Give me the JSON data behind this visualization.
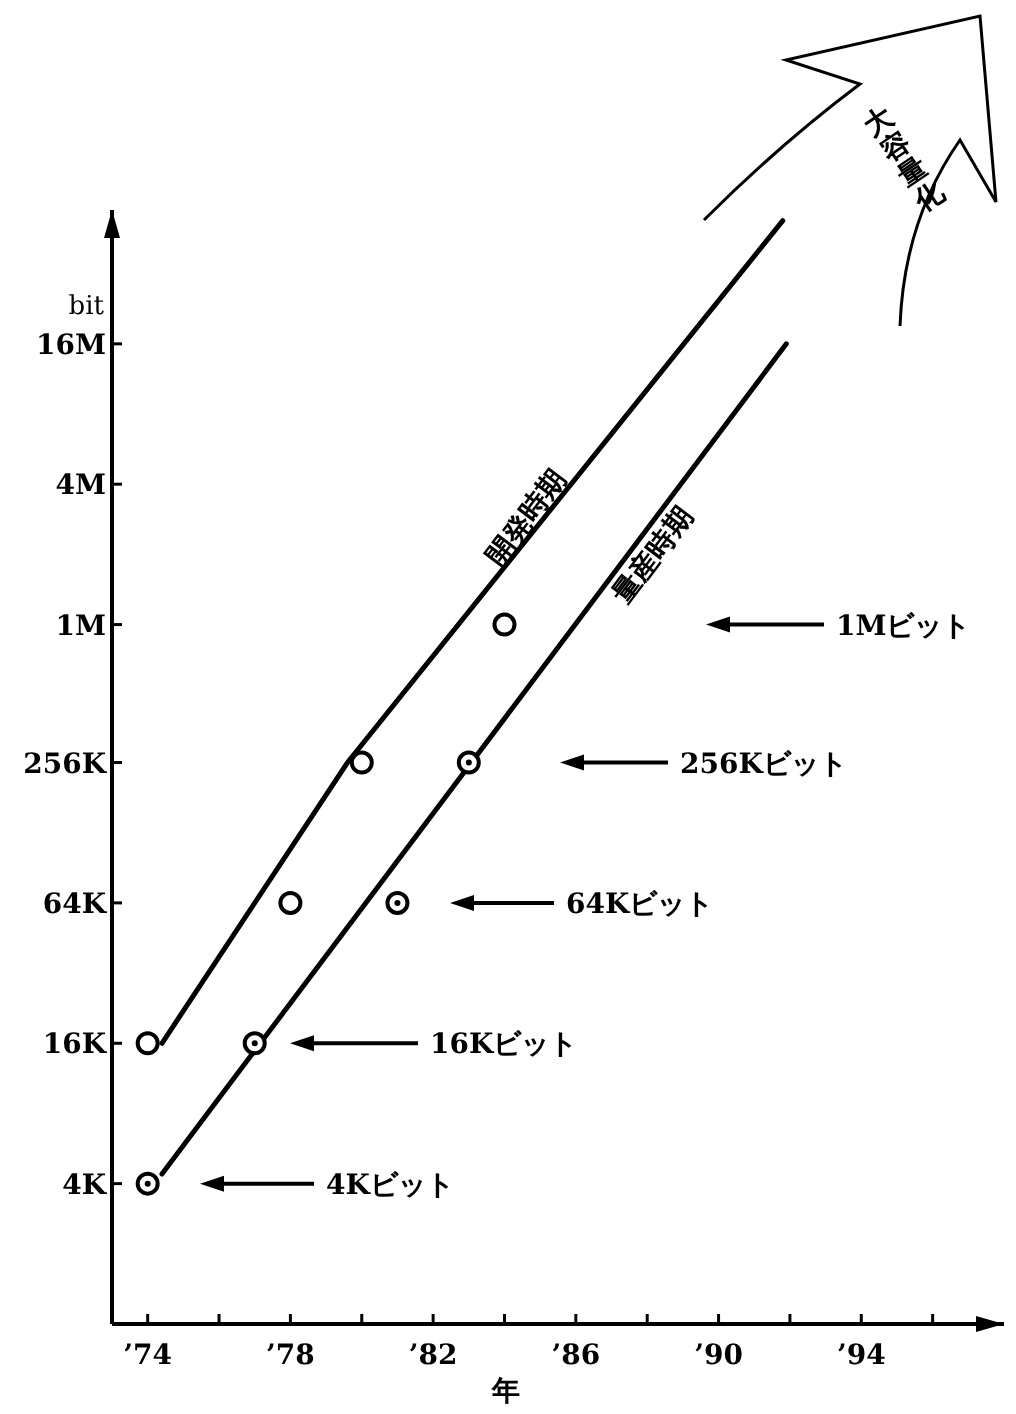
{
  "chart_data": {
    "type": "scatter",
    "xlabel": "年",
    "ylabel": "bit",
    "log": "y",
    "grid": false,
    "xlim": [
      73,
      98
    ],
    "ylim": [
      1000,
      60000000
    ],
    "xticks": [
      {
        "value": 74,
        "label": "’74"
      },
      {
        "value": 76,
        "label": null
      },
      {
        "value": 78,
        "label": "’78"
      },
      {
        "value": 80,
        "label": null
      },
      {
        "value": 82,
        "label": "’82"
      },
      {
        "value": 84,
        "label": null
      },
      {
        "value": 86,
        "label": "’86"
      },
      {
        "value": 88,
        "label": null
      },
      {
        "value": 90,
        "label": "’90"
      },
      {
        "value": 92,
        "label": null
      },
      {
        "value": 94,
        "label": "’94"
      },
      {
        "value": 96,
        "label": null
      }
    ],
    "yticks": [
      {
        "value": 4000,
        "label": "4K"
      },
      {
        "value": 16000,
        "label": "16K"
      },
      {
        "value": 64000,
        "label": "64K"
      },
      {
        "value": 256000,
        "label": "256K"
      },
      {
        "value": 1000000,
        "label": "1M"
      },
      {
        "value": 4000000,
        "label": "4M"
      },
      {
        "value": 16000000,
        "label": "16M"
      }
    ],
    "series": [
      {
        "color": "#000000",
        "marker": "circle",
        "x": [
          74,
          78,
          80,
          84
        ],
        "values": [
          16000,
          64000,
          256000,
          1000000
        ]
      },
      {
        "type": "line",
        "name": "開発時期",
        "color": "#000000",
        "x": [
          74.4,
          79.6,
          91.8
        ],
        "values": [
          16000,
          256000,
          54000000
        ]
      },
      {
        "color": "#000000",
        "marker": "circle",
        "x": [
          74,
          77,
          81,
          83
        ],
        "values": [
          4000,
          16000,
          64000,
          256000
        ]
      },
      {
        "type": "line",
        "name": "量産時期",
        "color": "#000000",
        "x": [
          74.4,
          91.9
        ],
        "values": [
          4400,
          16000000
        ]
      }
    ],
    "annotations": [
      "4Kビット",
      "16Kビット",
      "64Kビット",
      "256Kビット",
      "1Mビット",
      "大容量化"
    ]
  }
}
